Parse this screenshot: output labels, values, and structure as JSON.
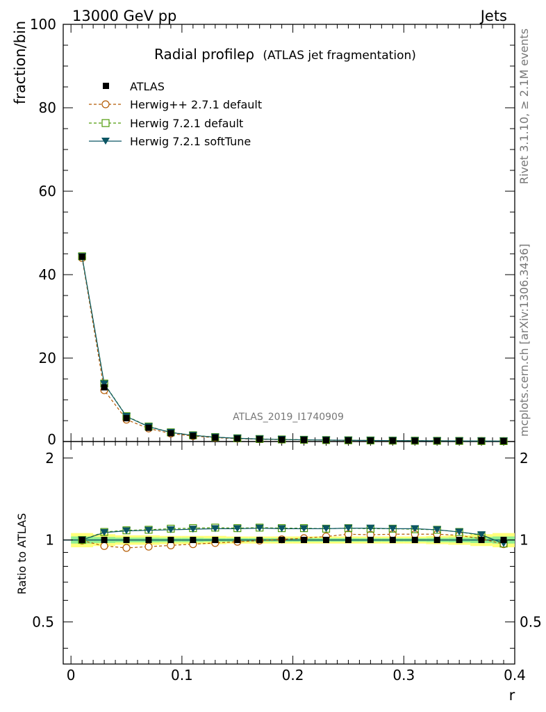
{
  "header": {
    "energy_label": "13000 GeV pp",
    "category_label": "Jets"
  },
  "side_labels": {
    "rivet": "Rivet 3.1.10, ≥ 2.1M events",
    "mcplots": "mcplots.cern.ch [arXiv:1306.3436]"
  },
  "watermark": "ATLAS_2019_I1740909",
  "chart_data": {
    "type": "line",
    "title_main": "Radial profile",
    "title_symbol": "ρ",
    "title_sub": "(ATLAS jet fragmentation)",
    "xlabel": "r",
    "ylabel": "fraction/bin",
    "ratio_ylabel": "Ratio to ATLAS",
    "xlim": [
      -0.007,
      0.4
    ],
    "ylim": [
      0,
      100
    ],
    "ratio_ylim": [
      0.35,
      2.3
    ],
    "x_ticks": [
      "0",
      "0.1",
      "0.2",
      "0.3",
      "0.4"
    ],
    "y_ticks": [
      "0",
      "20",
      "40",
      "60",
      "80",
      "100"
    ],
    "ratio_ticks": [
      "0.5",
      "1",
      "2"
    ],
    "grid": false,
    "legend_position": "top-left",
    "x": [
      0.01,
      0.03,
      0.05,
      0.07,
      0.09,
      0.11,
      0.13,
      0.15,
      0.17,
      0.19,
      0.21,
      0.23,
      0.25,
      0.27,
      0.29,
      0.31,
      0.33,
      0.35,
      0.37,
      0.39
    ],
    "series": [
      {
        "name": "ATLAS",
        "color": "#000000",
        "marker": "square-filled",
        "values": [
          44.3,
          13.0,
          5.6,
          3.3,
          2.0,
          1.35,
          0.95,
          0.7,
          0.55,
          0.45,
          0.38,
          0.32,
          0.27,
          0.23,
          0.2,
          0.18,
          0.16,
          0.14,
          0.12,
          0.1
        ],
        "ratio": [
          1.0,
          1.0,
          1.0,
          1.0,
          1.0,
          1.0,
          1.0,
          1.0,
          1.0,
          1.0,
          1.0,
          1.0,
          1.0,
          1.0,
          1.0,
          1.0,
          1.0,
          1.0,
          1.0,
          1.0
        ]
      },
      {
        "name": "Herwig++ 2.7.1 default",
        "color": "#b35900",
        "marker": "circle-open",
        "line": "dashed",
        "values": [
          44.0,
          12.3,
          5.25,
          3.13,
          1.92,
          1.31,
          0.93,
          0.69,
          0.55,
          0.45,
          0.39,
          0.33,
          0.28,
          0.24,
          0.21,
          0.19,
          0.17,
          0.15,
          0.12,
          0.1
        ],
        "ratio": [
          0.995,
          0.95,
          0.935,
          0.945,
          0.955,
          0.965,
          0.975,
          0.985,
          0.995,
          1.005,
          1.015,
          1.03,
          1.05,
          1.045,
          1.05,
          1.05,
          1.05,
          1.04,
          1.01,
          0.965
        ]
      },
      {
        "name": "Herwig 7.2.1 default",
        "color": "#4e9a06",
        "marker": "square-open",
        "line": "dashed",
        "values": [
          44.4,
          13.9,
          6.08,
          3.6,
          2.2,
          1.5,
          1.06,
          0.78,
          0.61,
          0.5,
          0.42,
          0.35,
          0.3,
          0.26,
          0.22,
          0.2,
          0.17,
          0.15,
          0.12,
          0.1
        ],
        "ratio": [
          1.0,
          1.07,
          1.085,
          1.09,
          1.1,
          1.105,
          1.11,
          1.105,
          1.11,
          1.105,
          1.105,
          1.1,
          1.105,
          1.1,
          1.1,
          1.095,
          1.09,
          1.07,
          1.04,
          0.97
        ]
      },
      {
        "name": "Herwig 7.2.1 softTune",
        "color": "#0b5563",
        "marker": "triangle-down-filled",
        "line": "solid",
        "values": [
          44.3,
          13.8,
          6.0,
          3.55,
          2.17,
          1.47,
          1.04,
          0.77,
          0.6,
          0.49,
          0.41,
          0.35,
          0.3,
          0.25,
          0.22,
          0.19,
          0.17,
          0.15,
          0.12,
          0.1
        ],
        "ratio": [
          1.0,
          1.065,
          1.08,
          1.085,
          1.09,
          1.095,
          1.1,
          1.1,
          1.105,
          1.1,
          1.1,
          1.1,
          1.105,
          1.105,
          1.1,
          1.1,
          1.09,
          1.07,
          1.045,
          0.97
        ]
      }
    ],
    "bands": {
      "outer_color": "#ffff7a",
      "inner_color": "#90ee90",
      "outer": [
        0.06,
        0.05,
        0.04,
        0.04,
        0.035,
        0.035,
        0.035,
        0.03,
        0.03,
        0.03,
        0.03,
        0.03,
        0.03,
        0.03,
        0.03,
        0.03,
        0.035,
        0.04,
        0.05,
        0.06
      ],
      "inner": [
        0.03,
        0.025,
        0.02,
        0.02,
        0.018,
        0.018,
        0.015,
        0.015,
        0.015,
        0.015,
        0.015,
        0.015,
        0.015,
        0.015,
        0.015,
        0.015,
        0.018,
        0.02,
        0.025,
        0.03
      ]
    }
  }
}
